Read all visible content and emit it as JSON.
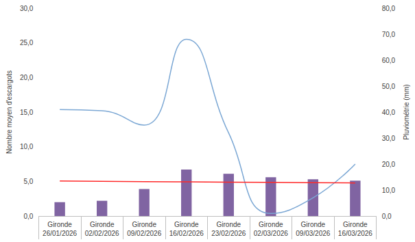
{
  "chart_data": {
    "type": "bar",
    "categories": [
      "Gironde\n26/01/2026",
      "Gironde\n02/02/2026",
      "Gironde\n09/02/2026",
      "Gironde\n16/02/2026",
      "Gironde\n23/02/2026",
      "Gironde\n02/03/2026",
      "Gironde\n09/03/2026",
      "Gironde\n16/03/2026"
    ],
    "ylabel": "Nombre moyen d'escargots",
    "y2label": "Pluviométrie (mm)",
    "series": [
      {
        "type": "bar",
        "color": "#8064a2",
        "values": [
          2.0,
          2.2,
          3.9,
          6.7,
          6.1,
          5.6,
          5.3,
          5.1
        ]
      },
      {
        "type": "line",
        "axis": "y2",
        "color": "#7ba7d4",
        "marker": "none",
        "line_style": "smooth",
        "values": [
          41,
          40.5,
          35,
          68,
          32,
          1,
          7,
          20
        ]
      },
      {
        "type": "line",
        "color": "#ff2a2a",
        "marker": "none",
        "line_style": "solid",
        "values": [
          5.05,
          5.01,
          4.97,
          4.93,
          4.89,
          4.85,
          4.81,
          4.77
        ]
      }
    ],
    "ylim": [
      0,
      30
    ],
    "yticks": [
      {
        "value": 0,
        "label": "0,0"
      },
      {
        "value": 5,
        "label": "5,0"
      },
      {
        "value": 10,
        "label": "10,0"
      },
      {
        "value": 15,
        "label": "15,0"
      },
      {
        "value": 20,
        "label": "20,0"
      },
      {
        "value": 25,
        "label": "25,0"
      },
      {
        "value": 30,
        "label": "30,0"
      }
    ],
    "y2lim": [
      0,
      80
    ],
    "y2ticks": [
      {
        "value": 0,
        "label": "0,0"
      },
      {
        "value": 10,
        "label": "10,0"
      },
      {
        "value": 20,
        "label": "20,0"
      },
      {
        "value": 30,
        "label": "30,0"
      },
      {
        "value": 40,
        "label": "40,0"
      },
      {
        "value": 50,
        "label": "50,0"
      },
      {
        "value": 60,
        "label": "60,0"
      },
      {
        "value": 70,
        "label": "70,0"
      },
      {
        "value": 80,
        "label": "80,0"
      }
    ],
    "grid": false
  }
}
